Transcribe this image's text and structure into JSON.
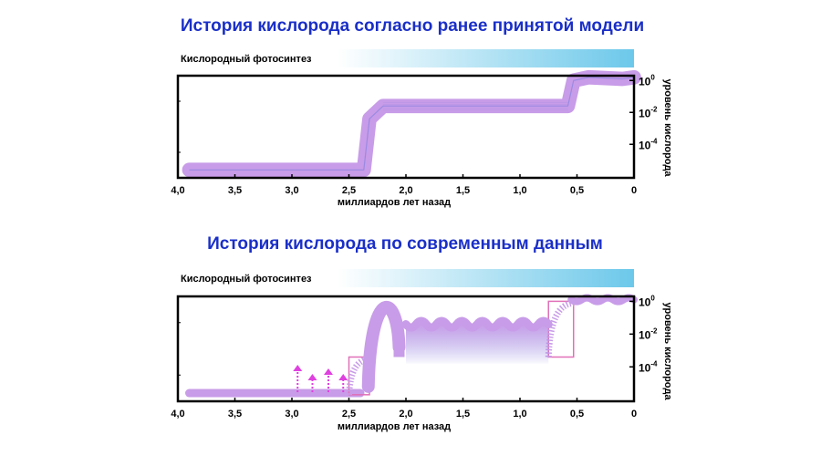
{
  "colors": {
    "title": "#1a2fc8",
    "curve": "#c89ce8",
    "curve_edge": "#8f86e0",
    "arrow": "#e040e0",
    "box": "#e070b8",
    "band_start": "#ffffff",
    "band_end": "#6cc8ea",
    "frame": "#000000"
  },
  "chart_data": [
    {
      "type": "line",
      "title": "История кислорода согласно ранее принятой модели",
      "band_label": "Кислородный фотосинтез",
      "xlabel": "миллиардов лет назад",
      "ylabel": "уровень кислорода",
      "x_ticks": [
        "4,0",
        "3,5",
        "3,0",
        "2,5",
        "2,0",
        "1,5",
        "1,0",
        "0,5",
        "0"
      ],
      "x_tick_values": [
        4.0,
        3.5,
        3.0,
        2.5,
        2.0,
        1.5,
        1.0,
        0.5,
        0
      ],
      "xlim": [
        4.0,
        0
      ],
      "y_scale": "log",
      "y_ticks": [
        {
          "base": "10",
          "exp": "0",
          "value": 0
        },
        {
          "base": "10",
          "exp": "-2",
          "value": -2
        },
        {
          "base": "10",
          "exp": "-4",
          "value": -4
        }
      ],
      "ylim_log10": [
        -6.1,
        0.3
      ],
      "series": [
        {
          "values_log10": [
            [
              3.9,
              -5.6
            ],
            [
              2.6,
              -5.6
            ],
            [
              2.37,
              -5.6
            ],
            [
              2.32,
              -2.4
            ],
            [
              2.2,
              -1.6
            ],
            [
              1.0,
              -1.6
            ],
            [
              0.58,
              -1.6
            ],
            [
              0.53,
              0.0
            ],
            [
              0.4,
              0.2
            ],
            [
              0.1,
              0.1
            ],
            [
              0.0,
              0.2
            ]
          ],
          "band_width_log10": 0.9
        }
      ]
    },
    {
      "type": "line",
      "title": "История кислорода по современным данным",
      "band_label": "Кислородный фотосинтез",
      "xlabel": "миллиардов лет назад",
      "ylabel": "уровень кислорода",
      "x_ticks": [
        "4,0",
        "3,5",
        "3,0",
        "2,5",
        "2,0",
        "1,5",
        "1,0",
        "0,5",
        "0"
      ],
      "x_tick_values": [
        4.0,
        3.5,
        3.0,
        2.5,
        2.0,
        1.5,
        1.0,
        0.5,
        0
      ],
      "xlim": [
        4.0,
        0
      ],
      "y_scale": "log",
      "y_ticks": [
        {
          "base": "10",
          "exp": "0",
          "value": 0
        },
        {
          "base": "10",
          "exp": "-2",
          "value": -2
        },
        {
          "base": "10",
          "exp": "-4",
          "value": -4
        }
      ],
      "ylim_log10": [
        -6.1,
        0.3
      ],
      "series": [
        {
          "segments": [
            {
              "x": [
                3.9,
                2.4
              ],
              "level_log10": -5.6
            },
            {
              "x": [
                2.0,
                0.75
              ],
              "level_log10": -1.4,
              "range_low_log10": -3.8,
              "wavy": true
            },
            {
              "x": [
                0.55,
                0.0
              ],
              "level_log10": 0.1
            }
          ],
          "peak_log10": 0.0,
          "peak_x": 2.2
        }
      ],
      "transition_boxes": [
        {
          "x": [
            2.5,
            2.32
          ],
          "y_log10": [
            -5.7,
            -3.4
          ]
        },
        {
          "x": [
            0.75,
            0.53
          ],
          "y_log10": [
            -3.4,
            0.0
          ]
        }
      ],
      "arrows_x": [
        2.95,
        2.82,
        2.68,
        2.55
      ]
    }
  ]
}
